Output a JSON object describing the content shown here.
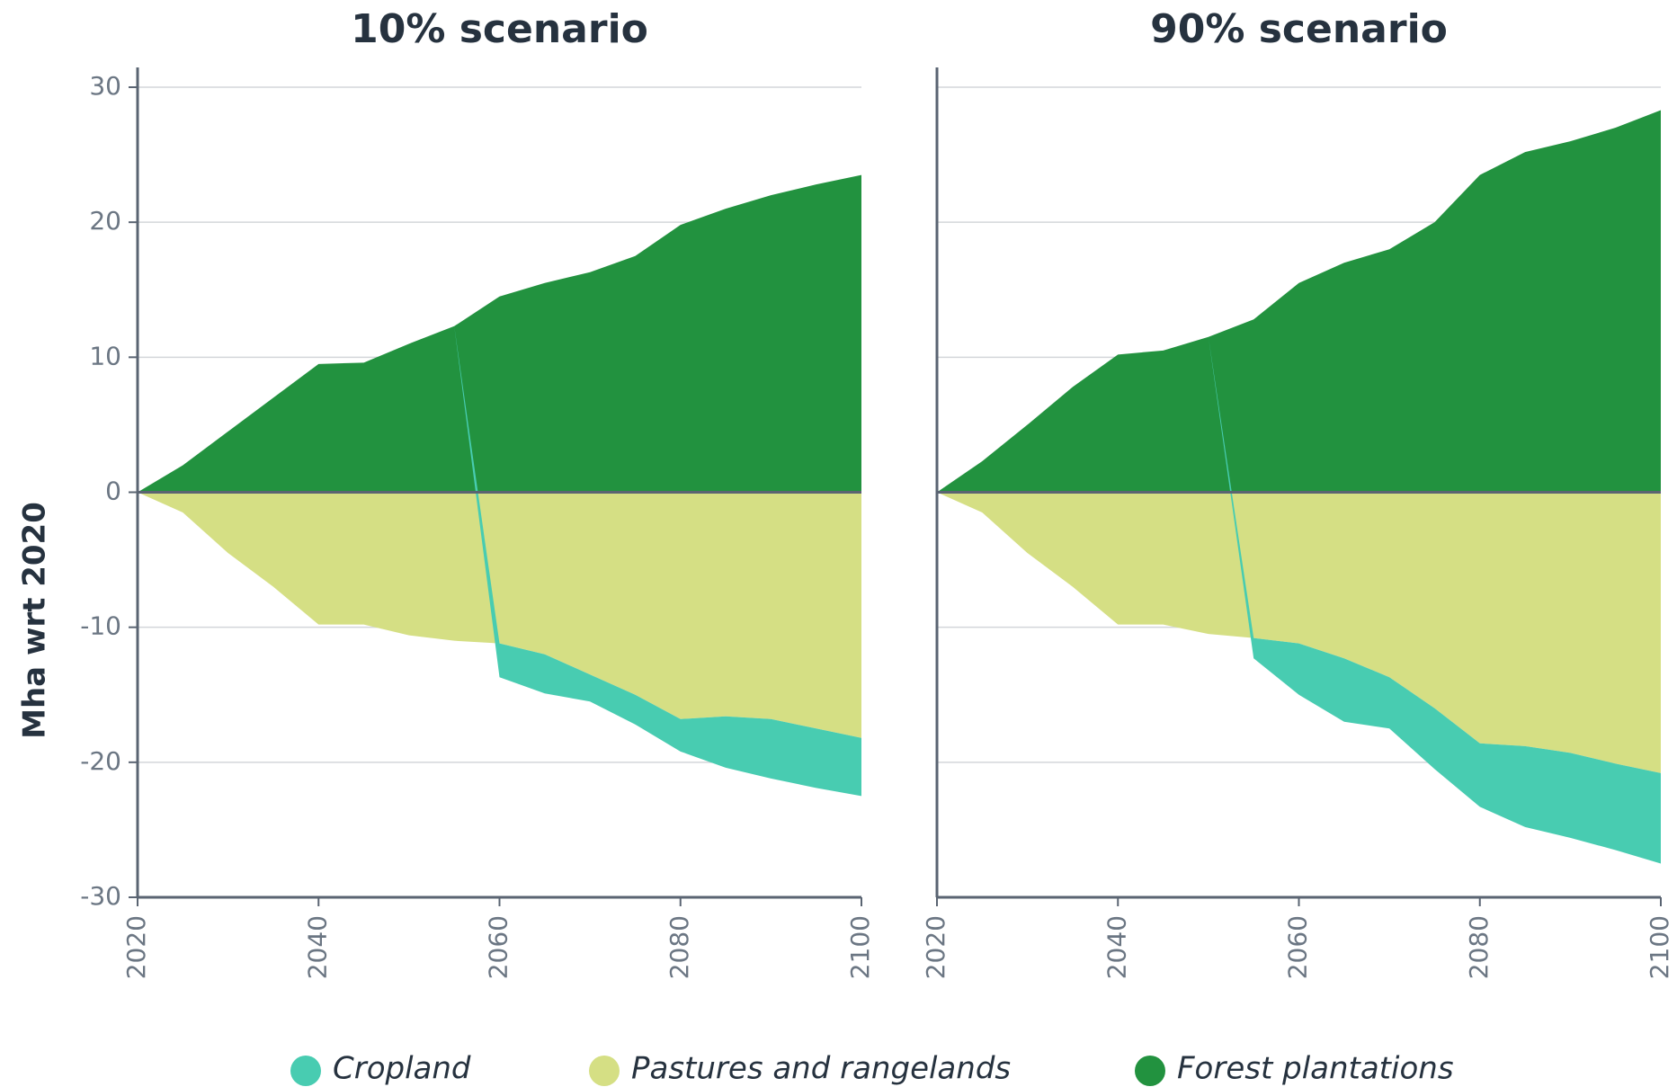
{
  "chart_data": [
    {
      "type": "area",
      "title": "10% scenario",
      "ylabel": "Mha wrt 2020",
      "x": [
        2020,
        2025,
        2030,
        2035,
        2040,
        2045,
        2050,
        2055,
        2060,
        2065,
        2070,
        2075,
        2080,
        2085,
        2090,
        2095,
        2100
      ],
      "xlim": [
        2020,
        2100
      ],
      "xticks": [
        2020,
        2040,
        2060,
        2080,
        2100
      ],
      "ylim": [
        -30,
        30
      ],
      "yticks": [
        -30,
        -20,
        -10,
        0,
        10,
        20,
        30
      ],
      "grid": true,
      "series": [
        {
          "name": "Cropland",
          "color": "#48ccb1",
          "values": [
            0,
            0,
            0,
            0,
            0,
            0,
            0,
            0,
            -2.5,
            -2.9,
            -2,
            -2.2,
            -2.4,
            -3.8,
            -4.4,
            -4.4,
            -4.3
          ]
        },
        {
          "name": "Pastures and rangelands",
          "color": "#d5df84",
          "values": [
            0,
            -1.5,
            -4.5,
            -7,
            -9.8,
            -9.8,
            -10.6,
            -11,
            -11.2,
            -12,
            -13.5,
            -15,
            -16.8,
            -16.6,
            -16.8,
            -17.5,
            -18.2
          ]
        },
        {
          "name": "Forest plantations",
          "color": "#22923f",
          "values": [
            0,
            2,
            4.5,
            7,
            9.5,
            9.6,
            11,
            12.3,
            14.5,
            15.5,
            16.3,
            17.5,
            19.8,
            21,
            22,
            22.8,
            23.5
          ]
        }
      ]
    },
    {
      "type": "area",
      "title": "90% scenario",
      "x": [
        2020,
        2025,
        2030,
        2035,
        2040,
        2045,
        2050,
        2055,
        2060,
        2065,
        2070,
        2075,
        2080,
        2085,
        2090,
        2095,
        2100
      ],
      "xlim": [
        2020,
        2100
      ],
      "xticks": [
        2020,
        2040,
        2060,
        2080,
        2100
      ],
      "ylim": [
        -30,
        30
      ],
      "yticks": [
        -30,
        -20,
        -10,
        0,
        10,
        20,
        30
      ],
      "grid": true,
      "series": [
        {
          "name": "Cropland",
          "color": "#48ccb1",
          "values": [
            0,
            0,
            0,
            0,
            0,
            0,
            0,
            -1.5,
            -3.8,
            -4.7,
            -3.8,
            -4.5,
            -4.7,
            -6,
            -6.3,
            -6.4,
            -6.7
          ]
        },
        {
          "name": "Pastures and rangelands",
          "color": "#d5df84",
          "values": [
            0,
            -1.5,
            -4.5,
            -7,
            -9.8,
            -9.8,
            -10.5,
            -10.8,
            -11.2,
            -12.3,
            -13.7,
            -16,
            -18.6,
            -18.8,
            -19.3,
            -20.1,
            -20.8
          ]
        },
        {
          "name": "Forest plantations",
          "color": "#22923f",
          "values": [
            0,
            2.3,
            5,
            7.8,
            10.2,
            10.5,
            11.5,
            12.8,
            15.5,
            17,
            18,
            20,
            23.5,
            25.2,
            26,
            27,
            28.3
          ]
        }
      ]
    }
  ]
}
